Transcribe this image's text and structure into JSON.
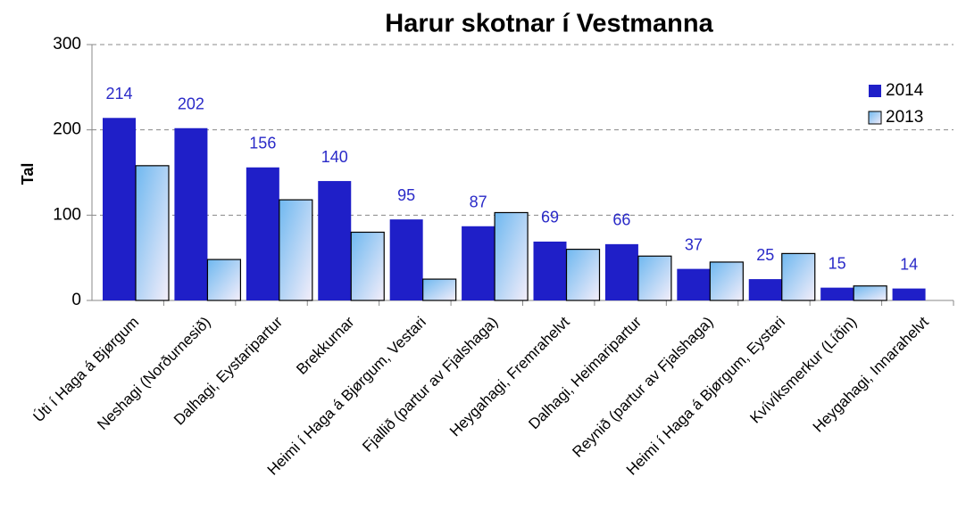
{
  "chart_data": {
    "type": "bar",
    "title": "Harur skotnar í Vestmanna",
    "y_label": "Tal",
    "categories": [
      "Úti í Haga á Bjørgum",
      "Neshagi (Norðurnesið)",
      "Dalhagi, Eystaripartur",
      "Brekkurnar",
      "Heimi í Haga á Bjørgum,  Vestari",
      "Fjallið (partur av Fjalshaga)",
      "Heygahagi, Fremrahelvt",
      "Dalhagi, Heimaripartur",
      "Reynið (partur av Fjalshaga)",
      "Heimi í Haga á Bjørgum, Eystari",
      "Kvívíksmerkur (Líðin)",
      "Heygahagi, Innarahelvt"
    ],
    "series": [
      {
        "name": "2014",
        "color": "#1f1fc8",
        "values": [
          214,
          202,
          156,
          140,
          95,
          87,
          69,
          66,
          37,
          25,
          15,
          14
        ]
      },
      {
        "name": "2013",
        "color": "#6fb8f0",
        "values": [
          158,
          48,
          118,
          80,
          25,
          103,
          60,
          52,
          45,
          55,
          17,
          null
        ]
      }
    ],
    "ylim": [
      0,
      300
    ],
    "yticks": [
      0,
      100,
      200,
      300
    ],
    "grid": true,
    "legend": "top-right"
  }
}
